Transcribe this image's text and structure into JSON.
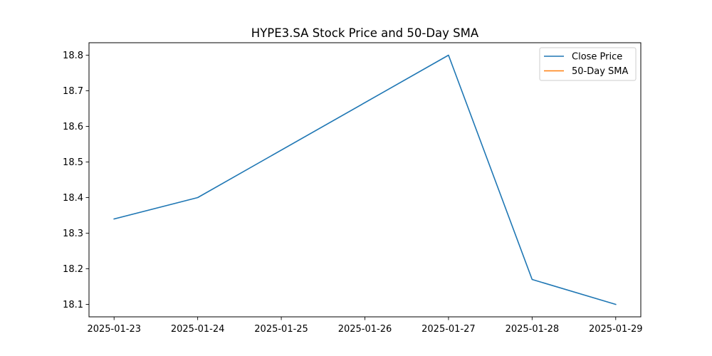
{
  "chart_data": {
    "type": "line",
    "title": "HYPE3.SA Stock Price and 50-Day SMA",
    "xlabel": "",
    "ylabel": "",
    "x": [
      "2025-01-23",
      "2025-01-24",
      "2025-01-25",
      "2025-01-26",
      "2025-01-27",
      "2025-01-28",
      "2025-01-29"
    ],
    "x_ticks": [
      "2025-01-23",
      "2025-01-24",
      "2025-01-25",
      "2025-01-26",
      "2025-01-27",
      "2025-01-28",
      "2025-01-29"
    ],
    "xlim": [
      "2025-01-22T16:48",
      "2025-01-29T07:12"
    ],
    "ylim": [
      18.065,
      18.835
    ],
    "y_ticks": [
      "18.1",
      "18.2",
      "18.3",
      "18.4",
      "18.5",
      "18.6",
      "18.7",
      "18.8"
    ],
    "grid": false,
    "legend_position": "top-right",
    "series": [
      {
        "name": "Close Price",
        "color": "#1f77b4",
        "points": [
          {
            "x": "2025-01-23",
            "y": 18.34
          },
          {
            "x": "2025-01-24",
            "y": 18.4
          },
          {
            "x": "2025-01-27",
            "y": 18.8
          },
          {
            "x": "2025-01-28",
            "y": 18.17
          },
          {
            "x": "2025-01-29",
            "y": 18.1
          }
        ]
      },
      {
        "name": "50-Day SMA",
        "color": "#ff7f0e",
        "points": []
      }
    ]
  }
}
